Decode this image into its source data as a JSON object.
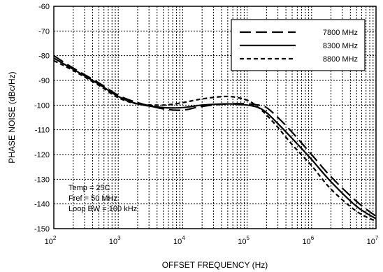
{
  "chart_data": {
    "type": "line",
    "title": "",
    "xlabel": "OFFSET FREQUENCY (Hz)",
    "ylabel": "PHASE NOISE (dBc/Hz)",
    "x_scale": "log",
    "xlim": [
      100,
      10000000
    ],
    "ylim": [
      -150,
      -60
    ],
    "grid": true,
    "legend_position": "top-right",
    "x_tick_labels": [
      {
        "base": "10",
        "exp": "2",
        "value": 100
      },
      {
        "base": "10",
        "exp": "3",
        "value": 1000
      },
      {
        "base": "10",
        "exp": "4",
        "value": 10000
      },
      {
        "base": "10",
        "exp": "5",
        "value": 100000
      },
      {
        "base": "10",
        "exp": "6",
        "value": 1000000
      },
      {
        "base": "10",
        "exp": "7",
        "value": 10000000
      }
    ],
    "y_tick_labels": [
      "-60",
      "-70",
      "-80",
      "-90",
      "-100",
      "-110",
      "-120",
      "-130",
      "-140",
      "-150"
    ],
    "annotations": [
      "Temp = 25C",
      "Fref = 50 MHz",
      "Loop BW = 100 kHz"
    ],
    "series": [
      {
        "name": "7800 MHz",
        "style": "long-dash",
        "x": [
          100,
          200,
          500,
          1000,
          2000,
          5000,
          10000,
          20000,
          50000,
          100000,
          150000,
          200000,
          300000,
          500000,
          1000000,
          2000000,
          5000000,
          10000000
        ],
        "y": [
          -80,
          -85,
          -91,
          -96,
          -99,
          -101.5,
          -102,
          -100.5,
          -99.5,
          -99.5,
          -100,
          -101,
          -105,
          -111,
          -120,
          -129,
          -139,
          -145
        ]
      },
      {
        "name": "8300 MHz",
        "style": "solid",
        "x": [
          100,
          200,
          500,
          1000,
          2000,
          5000,
          10000,
          20000,
          50000,
          100000,
          150000,
          200000,
          300000,
          500000,
          1000000,
          2000000,
          5000000,
          10000000
        ],
        "y": [
          -81,
          -85.5,
          -91.5,
          -96.5,
          -99.5,
          -101,
          -101,
          -100,
          -99.5,
          -100,
          -101,
          -103,
          -107.5,
          -113.5,
          -122,
          -131,
          -141,
          -146
        ]
      },
      {
        "name": "8800 MHz",
        "style": "short-dash",
        "x": [
          100,
          200,
          500,
          1000,
          2000,
          5000,
          10000,
          20000,
          50000,
          100000,
          150000,
          200000,
          300000,
          500000,
          1000000,
          2000000,
          5000000,
          10000000
        ],
        "y": [
          -82,
          -86,
          -92,
          -97,
          -99.5,
          -100,
          -99,
          -97.5,
          -96.5,
          -98,
          -101,
          -104,
          -109,
          -116,
          -124.5,
          -134,
          -143,
          -147
        ]
      }
    ]
  }
}
